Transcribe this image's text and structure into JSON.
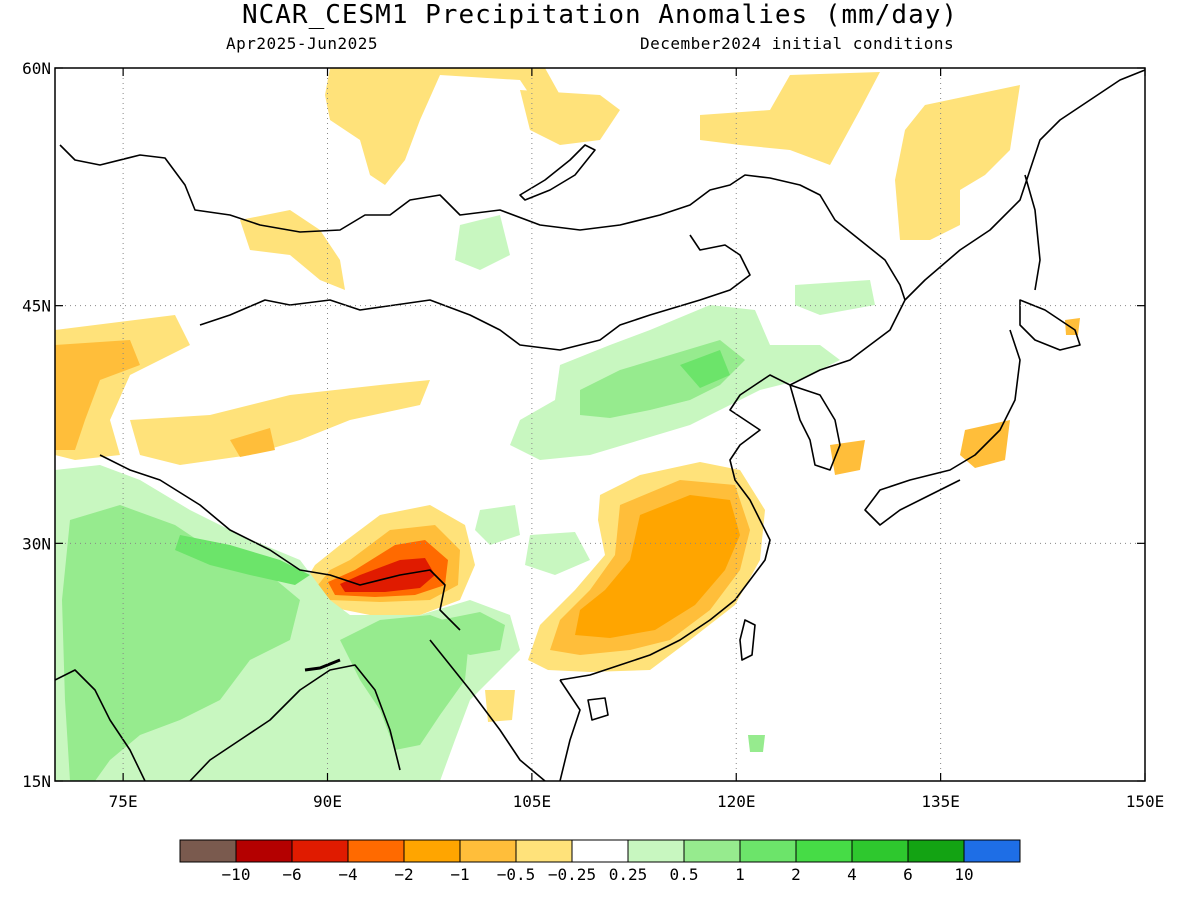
{
  "header": {
    "title": "NCAR_CESM1 Precipitation Anomalies (mm/day)",
    "period": "Apr2025-Jun2025",
    "init": "December2024 initial conditions"
  },
  "map": {
    "region": "East Asia",
    "lon_range": [
      70,
      150
    ],
    "lat_range": [
      15,
      60
    ],
    "lon_ticks": [
      {
        "value": 75,
        "label": "75E"
      },
      {
        "value": 90,
        "label": "90E"
      },
      {
        "value": 105,
        "label": "105E"
      },
      {
        "value": 120,
        "label": "120E"
      },
      {
        "value": 135,
        "label": "135E"
      },
      {
        "value": 150,
        "label": "150E"
      }
    ],
    "lat_ticks": [
      {
        "value": 60,
        "label": "60N"
      },
      {
        "value": 45,
        "label": "45N"
      },
      {
        "value": 30,
        "label": "30N"
      },
      {
        "value": 15,
        "label": "15N"
      }
    ],
    "grid": "dotted",
    "anomaly_regions": [
      {
        "name": "southern-tibet-dry-core",
        "lon": [
          90,
          98
        ],
        "lat": [
          27,
          29.5
        ],
        "class": "-6 to -2"
      },
      {
        "name": "southeast-china-dry",
        "lon": [
          107,
          121
        ],
        "lat": [
          22,
          35
        ],
        "class": "-2 to -0.5"
      },
      {
        "name": "tarim-band-dry",
        "lon": [
          75,
          98
        ],
        "lat": [
          36,
          39
        ],
        "class": "-1 to -0.25"
      },
      {
        "name": "central-asia-dry",
        "lon": [
          70,
          80
        ],
        "lat": [
          35,
          44
        ],
        "class": "-2 to -0.25"
      },
      {
        "name": "siberia-dry",
        "lon": [
          88,
          132
        ],
        "lat": [
          51,
          60
        ],
        "class": "-1 to -0.25"
      },
      {
        "name": "india-wet",
        "lon": [
          70,
          98
        ],
        "lat": [
          15,
          32
        ],
        "class": "0.25 to 2"
      },
      {
        "name": "north-china-wet",
        "lon": [
          103,
          120
        ],
        "lat": [
          35,
          45
        ],
        "class": "0.25 to 2"
      }
    ]
  },
  "colorbar": {
    "colors": [
      "#7a5a4e",
      "#b40000",
      "#e01b00",
      "#ff6a00",
      "#ffa500",
      "#ffbe3a",
      "#ffe27a",
      "#ffffff",
      "#c8f7c0",
      "#96eb8e",
      "#6ce46a",
      "#46dc46",
      "#2ec82e",
      "#13a313",
      "#1e6ee6"
    ],
    "labels": [
      "-10",
      "-6",
      "-4",
      "-2",
      "-1",
      "-0.5",
      "-0.25",
      "0.25",
      "0.5",
      "1",
      "2",
      "4",
      "6",
      "10"
    ]
  }
}
